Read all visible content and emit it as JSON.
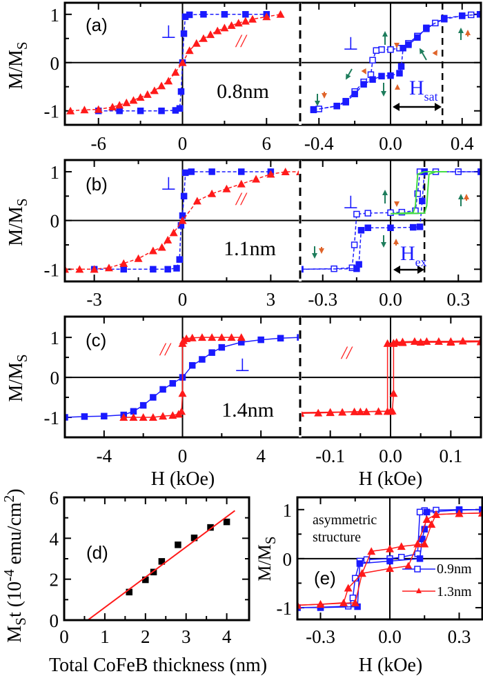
{
  "colors": {
    "blue": "#1a1aff",
    "red": "#ff1a1a",
    "green_curve": "#44dd44",
    "arrow_green": "#1e7d5c",
    "arrow_orange": "#e0642a",
    "frame": "#000000"
  },
  "labels": {
    "y_main": "M/M",
    "y_sub": "S",
    "x_field": "H (kOe)",
    "d_y": {
      "p1": "M",
      "p2": "S",
      "p3": "t (10",
      "p4": "-4",
      "p5": " emu/cm",
      "p6": "2",
      "p7": ")"
    },
    "d_x": "Total CoFeB thickness (nm)"
  },
  "annotations": {
    "a": {
      "panel": "(a)",
      "perp": "⊥",
      "par": "//",
      "thickness": "0.8nm",
      "perp_right": "⊥",
      "hsat_main": "H",
      "hsat_sub": "sat"
    },
    "b": {
      "panel": "(b)",
      "perp": "⊥",
      "par": "//",
      "thickness": "1.1nm",
      "perp_right": "⊥",
      "hex_main": "H",
      "hex_sub": "ex"
    },
    "c": {
      "panel": "(c)",
      "par": "//",
      "perp": "⊥",
      "thickness": "1.4nm",
      "par_right": "//"
    },
    "d": {
      "panel": "(d)"
    },
    "e": {
      "panel": "(e)",
      "text1": "asymmetric",
      "text2": "structure",
      "legend": [
        "0.9nm",
        "1.3nm"
      ]
    }
  },
  "chart_data": [
    {
      "id": "a-left",
      "type": "line",
      "xlim": [
        -8.4,
        8.4
      ],
      "ylim": [
        -1.29,
        1.24
      ],
      "xticks": [
        -6,
        0,
        6
      ],
      "xtick_labels": [
        "-6",
        "0",
        "6"
      ],
      "xminor": [
        -3,
        3
      ],
      "yticks": [
        1,
        0,
        -1
      ],
      "ytick_labels": [
        "1",
        "0",
        "-1"
      ],
      "yminor": [
        0.5,
        -0.5
      ],
      "zero_lines": true,
      "series": [
        {
          "marker": "square",
          "filled": true,
          "color": "blue",
          "line": "dashed",
          "x": [
            -6,
            -4.5,
            -3,
            -1.5,
            -0.5,
            -0.2,
            -0.1,
            0,
            0.1,
            0.2,
            0.5,
            1.5,
            3,
            4.5,
            6
          ],
          "y": [
            -1,
            -1,
            -1,
            -1,
            -0.99,
            -0.95,
            -0.6,
            0,
            0.6,
            0.95,
            0.99,
            1,
            1,
            1,
            1
          ]
        },
        {
          "marker": "triangle",
          "filled": true,
          "color": "red",
          "line": "dashed",
          "x": [
            -8,
            -7,
            -6,
            -5,
            -4.5,
            -4,
            -3.5,
            -3,
            -2.5,
            -2,
            -1.5,
            -1,
            -0.5,
            0,
            0.5,
            1,
            1.5,
            2,
            2.5,
            3,
            3.5,
            4,
            4.5,
            5,
            6,
            7
          ],
          "y": [
            -1,
            -0.98,
            -0.97,
            -0.92,
            -0.88,
            -0.83,
            -0.78,
            -0.72,
            -0.66,
            -0.58,
            -0.48,
            -0.38,
            -0.2,
            0,
            0.25,
            0.4,
            0.5,
            0.58,
            0.66,
            0.72,
            0.77,
            0.82,
            0.86,
            0.9,
            0.95,
            1
          ]
        }
      ]
    },
    {
      "id": "a-right",
      "type": "line",
      "xlim": [
        -0.505,
        0.505
      ],
      "ylim": [
        -1.29,
        1.24
      ],
      "xticks": [
        -0.4,
        0,
        0.4
      ],
      "xtick_labels": [
        "-0.4",
        "0.0",
        "0.4"
      ],
      "xminor": [
        -0.2,
        0.2
      ],
      "yticks": [
        1,
        0,
        -1
      ],
      "yminor": [
        0.5,
        -0.5
      ],
      "zero_lines": true,
      "hline_dashed_at": 0.29,
      "series": [
        {
          "marker": "square",
          "filled": false,
          "color": "blue",
          "line": "dashed",
          "x": [
            0.5,
            0.45,
            0.4,
            0.3,
            0.25,
            0.2,
            0.15,
            0.1,
            0.05,
            0,
            -0.05,
            -0.08,
            -0.1,
            -0.11,
            -0.15,
            -0.2,
            -0.25,
            -0.3,
            -0.4,
            -0.43
          ],
          "y": [
            1,
            0.99,
            0.97,
            0.9,
            0.82,
            0.7,
            0.55,
            0.4,
            0.3,
            0.27,
            0.27,
            0.25,
            0.05,
            -0.25,
            -0.4,
            -0.6,
            -0.8,
            -0.9,
            -0.96,
            -0.97
          ]
        },
        {
          "marker": "square",
          "filled": true,
          "color": "blue",
          "line": "dashed",
          "x": [
            -0.43,
            -0.3,
            -0.25,
            -0.2,
            -0.15,
            -0.1,
            -0.05,
            0,
            0.05,
            0.06,
            0.07,
            0.1,
            0.15,
            0.2,
            0.3,
            0.4,
            0.5
          ],
          "y": [
            -0.98,
            -0.9,
            -0.82,
            -0.65,
            -0.45,
            -0.35,
            -0.28,
            -0.27,
            -0.22,
            -0.08,
            0.3,
            0.37,
            0.52,
            0.72,
            0.92,
            0.97,
            1
          ]
        }
      ]
    },
    {
      "id": "b-left",
      "type": "line",
      "xlim": [
        -4,
        4
      ],
      "ylim": [
        -1.25,
        1.24
      ],
      "xticks": [
        -3,
        0,
        3
      ],
      "xtick_labels": [
        "-3",
        "0",
        "3"
      ],
      "xminor": [
        -1.5,
        1.5
      ],
      "yticks": [
        1,
        0,
        -1
      ],
      "ytick_labels": [
        "1",
        "0",
        "-1"
      ],
      "yminor": [
        0.5,
        -0.5
      ],
      "zero_lines": true,
      "series": [
        {
          "marker": "square",
          "filled": true,
          "color": "blue",
          "line": "dashed",
          "x": [
            -3,
            -2,
            -1,
            -0.5,
            -0.2,
            -0.1,
            -0.05,
            0,
            0.05,
            0.1,
            0.3,
            1,
            2,
            3
          ],
          "y": [
            -1,
            -1,
            -1,
            -1,
            -0.98,
            -0.8,
            -0.1,
            0.1,
            0.5,
            0.98,
            1,
            1,
            1,
            1
          ]
        },
        {
          "marker": "triangle",
          "filled": true,
          "color": "red",
          "line": "dashed",
          "x": [
            -4,
            -3.5,
            -3,
            -2.5,
            -2,
            -1.5,
            -1,
            -0.7,
            -0.5,
            -0.3,
            0,
            0.5,
            1,
            1.5,
            2,
            2.5,
            3,
            3.5,
            4
          ],
          "y": [
            -1,
            -1,
            -1,
            -0.97,
            -0.88,
            -0.78,
            -0.62,
            -0.55,
            -0.4,
            -0.25,
            0,
            0.4,
            0.55,
            0.65,
            0.75,
            0.85,
            0.95,
            1,
            1
          ]
        }
      ]
    },
    {
      "id": "b-right",
      "type": "line",
      "xlim": [
        -0.4,
        0.4
      ],
      "ylim": [
        -1.25,
        1.24
      ],
      "xticks": [
        -0.3,
        0,
        0.3
      ],
      "xtick_labels": [
        "-0.3",
        "0.0",
        "0.3"
      ],
      "xminor": [
        -0.15,
        0.15
      ],
      "yticks": [
        1,
        0,
        -1
      ],
      "yminor": [
        0.5,
        -0.5
      ],
      "zero_lines": true,
      "hline_dashed_at": 0.15,
      "series": [
        {
          "marker": "square",
          "filled": false,
          "color": "blue",
          "line": "dashed",
          "x": [
            0.4,
            0.3,
            0.2,
            0.15,
            0.13,
            0.12,
            0.11,
            0.05,
            0,
            -0.1,
            -0.15,
            -0.16,
            -0.17,
            -0.25,
            -0.4
          ],
          "y": [
            1,
            1,
            1,
            1,
            1,
            0.55,
            0.2,
            0.17,
            0.16,
            0.15,
            0.13,
            -0.5,
            -0.97,
            -0.99,
            -1
          ]
        },
        {
          "marker": "square",
          "filled": true,
          "color": "blue",
          "line": "dashed",
          "x": [
            -0.4,
            -0.15,
            -0.14,
            -0.13,
            -0.1,
            0,
            0.1,
            0.13,
            0.14,
            0.15,
            0.4
          ],
          "y": [
            -1,
            -0.99,
            -0.9,
            -0.2,
            -0.15,
            -0.15,
            -0.14,
            -0.13,
            0.4,
            1,
            1
          ]
        },
        {
          "marker": "none",
          "color": "green_curve",
          "line": "solid",
          "x": [
            0,
            0.1,
            0.11,
            0.12,
            0.15,
            0.25,
            0.2,
            0.17,
            0.16,
            0.15,
            0.05,
            0
          ],
          "y": [
            0.14,
            0.16,
            0.3,
            0.95,
            1,
            1,
            1,
            0.95,
            0.3,
            0.15,
            0.14,
            0.14
          ]
        }
      ]
    },
    {
      "id": "c-left",
      "type": "line",
      "xlim": [
        -6,
        6
      ],
      "ylim": [
        -1.5,
        1.52
      ],
      "xticks": [
        -4,
        0,
        4
      ],
      "xtick_labels": [
        "-4",
        "0",
        "4"
      ],
      "xminor": [
        -2,
        2
      ],
      "xlabel": "H (kOe)",
      "yticks": [
        1,
        0,
        -1
      ],
      "ytick_labels": [
        "1",
        "0",
        "-1"
      ],
      "yminor": [
        0.5,
        -0.5
      ],
      "zero_lines": true,
      "series": [
        {
          "marker": "square",
          "filled": true,
          "color": "blue",
          "line": "solid",
          "x": [
            -6,
            -5,
            -4,
            -3,
            -2.5,
            -2,
            -1.5,
            -1,
            -0.5,
            0,
            0.5,
            1,
            1.5,
            2,
            3,
            4,
            5,
            6
          ],
          "y": [
            -1,
            -0.98,
            -0.97,
            -0.94,
            -0.85,
            -0.7,
            -0.5,
            -0.3,
            -0.15,
            0,
            0.3,
            0.45,
            0.62,
            0.75,
            0.88,
            0.94,
            0.98,
            1
          ]
        },
        {
          "marker": "triangle",
          "filled": true,
          "color": "red",
          "line": "solid",
          "x": [
            -3,
            -2.5,
            -2,
            -1.5,
            -1,
            -0.5,
            -0.2,
            -0.05,
            0,
            0,
            0.05,
            0.2,
            0.5,
            1,
            1.5,
            2,
            2.5,
            3
          ],
          "y": [
            -1,
            -1,
            -1,
            -1,
            -0.97,
            -0.95,
            -0.92,
            -0.85,
            -0.4,
            0.85,
            0.92,
            0.97,
            0.99,
            1,
            1,
            1,
            1,
            1
          ]
        }
      ]
    },
    {
      "id": "c-right",
      "type": "line",
      "xlim": [
        -0.15,
        0.15
      ],
      "ylim": [
        -1.5,
        1.52
      ],
      "xticks": [
        -0.1,
        0,
        0.1
      ],
      "xtick_labels": [
        "-0.1",
        "0.0",
        "0.1"
      ],
      "xminor": [
        -0.05,
        0.05
      ],
      "xlabel": "H (kOe)",
      "yticks": [
        1,
        0,
        -1
      ],
      "yminor": [
        0.5,
        -0.5
      ],
      "zero_lines": true,
      "series": [
        {
          "marker": "triangle",
          "filled": true,
          "color": "red",
          "line": "solid",
          "x": [
            -0.15,
            -0.12,
            -0.1,
            -0.08,
            -0.06,
            -0.04,
            -0.02,
            -0.005,
            -0.005,
            0.005,
            0.01,
            0.02,
            0.04,
            0.06,
            0.08,
            0.1,
            0.12,
            0.15
          ],
          "y": [
            -0.9,
            -0.89,
            -0.88,
            -0.87,
            -0.86,
            -0.86,
            -0.85,
            -0.85,
            0.85,
            0.86,
            0.88,
            0.89,
            0.9,
            0.9,
            0.9,
            0.9,
            0.91,
            0.91
          ]
        },
        {
          "marker": "triangle",
          "filled": true,
          "color": "red",
          "line": "solid",
          "x": [
            -0.15,
            -0.1,
            -0.05,
            0,
            0.003,
            0.005,
            0.005,
            0.02,
            0.05,
            0.1,
            0.15
          ],
          "y": [
            -0.88,
            -0.87,
            -0.86,
            -0.85,
            -0.84,
            -0.4,
            0.85,
            0.87,
            0.88,
            0.88,
            0.89
          ]
        }
      ]
    },
    {
      "id": "d",
      "type": "scatter",
      "xlim": [
        0,
        4.55
      ],
      "ylim": [
        0,
        6
      ],
      "xticks": [
        0,
        1,
        2,
        3,
        4
      ],
      "xtick_labels": [
        "0",
        "1",
        "2",
        "3",
        "4"
      ],
      "xminor": [
        0.5,
        1.5,
        2.5,
        3.5
      ],
      "yticks": [
        0,
        2,
        4,
        6
      ],
      "ytick_labels": [
        "0",
        "2",
        "4",
        "6"
      ],
      "yminor": [
        1,
        3,
        5
      ],
      "zero_lines": false,
      "xlabel": "Total CoFeB thickness (nm)",
      "ylabel": "MSt (10-4 emu/cm2)",
      "series": [
        {
          "marker": "square",
          "filled": true,
          "color": "frame",
          "line": "none",
          "x": [
            1.6,
            2.0,
            2.2,
            2.4,
            2.8,
            3.2,
            3.6,
            4.0
          ],
          "y": [
            1.37,
            1.97,
            2.35,
            2.87,
            3.68,
            4.02,
            4.53,
            4.8
          ]
        },
        {
          "marker": "none",
          "color": "red",
          "line": "solid",
          "x": [
            0.58,
            4.2
          ],
          "y": [
            0,
            5.35
          ]
        }
      ]
    },
    {
      "id": "e",
      "type": "line",
      "xlim": [
        -0.4,
        0.4
      ],
      "ylim": [
        -1.24,
        1.25
      ],
      "xticks": [
        -0.3,
        0,
        0.3
      ],
      "xtick_labels": [
        "-0.3",
        "0.0",
        "0.3"
      ],
      "xminor": [
        -0.15,
        0.15
      ],
      "yticks": [
        1,
        0,
        -1
      ],
      "ytick_labels": [
        "1",
        "0",
        "-1"
      ],
      "yminor": [
        0.5,
        -0.5
      ],
      "zero_lines": true,
      "xlabel": "H (kOe)",
      "series": [
        {
          "name": "0.9nm",
          "marker": "square",
          "filled": false,
          "color": "blue",
          "line": "solid",
          "x": [
            0.4,
            0.3,
            0.2,
            0.15,
            0.13,
            0.12,
            0.05,
            0,
            -0.1,
            -0.13,
            -0.15,
            -0.16,
            -0.18,
            -0.3,
            -0.4
          ],
          "y": [
            1,
            1,
            0.99,
            0.98,
            0.95,
            0.1,
            0.03,
            0,
            -0.02,
            -0.05,
            -0.4,
            -0.8,
            -0.97,
            -0.99,
            -1
          ]
        },
        {
          "marker": "square",
          "filled": true,
          "color": "blue",
          "line": "solid",
          "x": [
            -0.4,
            -0.3,
            -0.14,
            -0.13,
            0,
            0.13,
            0.14,
            0.15,
            0.16,
            0.3,
            0.4
          ],
          "y": [
            -1,
            -1,
            -0.98,
            -0.1,
            -0.05,
            0,
            0.4,
            0.6,
            0.95,
            0.99,
            1
          ]
        },
        {
          "name": "1.3nm",
          "marker": "triangle",
          "filled": true,
          "color": "red",
          "line": "solid",
          "x": [
            0.4,
            0.3,
            0.2,
            0.18,
            0.15,
            0.05,
            0,
            -0.08,
            -0.12,
            -0.18,
            -0.2,
            -0.3,
            -0.4
          ],
          "y": [
            0.93,
            0.92,
            0.9,
            0.7,
            0.3,
            0.25,
            0.2,
            0.15,
            -0.3,
            -0.6,
            -0.9,
            -0.93,
            -0.95
          ]
        },
        {
          "marker": "triangle",
          "filled": true,
          "color": "red",
          "line": "solid",
          "x": [
            -0.4,
            -0.3,
            -0.15,
            -0.12,
            0,
            0.08,
            0.12,
            0.16,
            0.2,
            0.3,
            0.4
          ],
          "y": [
            -0.95,
            -0.93,
            -0.9,
            -0.3,
            -0.2,
            -0.15,
            0.3,
            0.8,
            0.9,
            0.92,
            0.93
          ]
        }
      ]
    }
  ]
}
